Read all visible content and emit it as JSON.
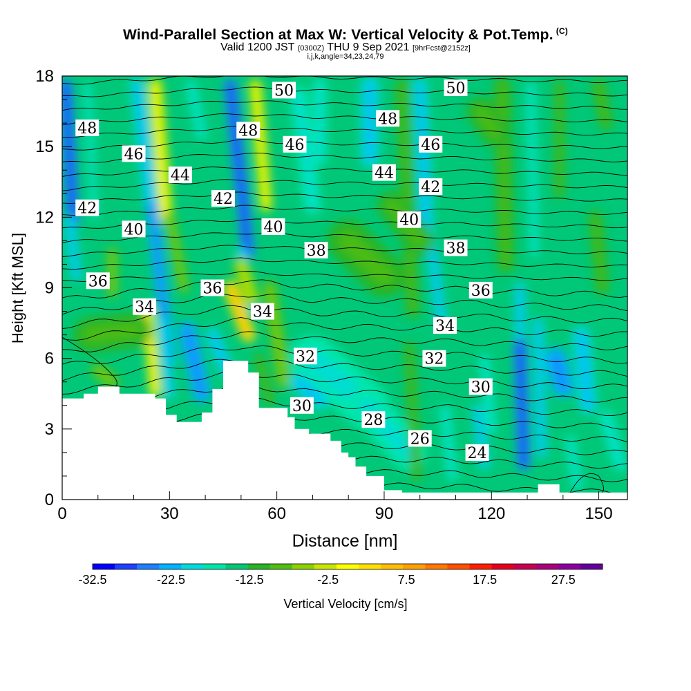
{
  "title": {
    "main": "Wind-Parallel Section at Max W: Vertical Velocity & Pot.Temp.",
    "copyright": "(C)",
    "valid_prefix": "Valid 1200 JST",
    "valid_utc": "(0300Z)",
    "valid_date": "THU 9 Sep 2021",
    "forecast": "[9hrFcst@2152z]",
    "indices": "i,j,k,angle=34,23,24,79"
  },
  "chart_data": {
    "type": "heatmap",
    "xlabel": "Distance [nm]",
    "ylabel": "Height [Kft MSL]",
    "xlim": [
      0,
      158
    ],
    "ylim": [
      0,
      18
    ],
    "xticks": [
      0,
      30,
      60,
      90,
      120,
      150
    ],
    "yticks": [
      0,
      3,
      6,
      9,
      12,
      15,
      18
    ],
    "colorbar": {
      "label": "Vertical Velocity [cm/s]",
      "min": -32.5,
      "max": 32.5,
      "step": 5,
      "tick_labels": [
        "-32.5",
        "-22.5",
        "-12.5",
        "-2.5",
        "7.5",
        "17.5",
        "27.5"
      ],
      "colors": [
        "#0000ff",
        "#1e40ff",
        "#1e80ff",
        "#00b4ff",
        "#00dcdc",
        "#00e6aa",
        "#00c878",
        "#28b428",
        "#50be14",
        "#8cd200",
        "#c8e600",
        "#ffff00",
        "#ffe100",
        "#ffbe00",
        "#ffa000",
        "#ff7800",
        "#ff5000",
        "#ff1e00",
        "#e6001e",
        "#c80050",
        "#aa0078",
        "#8c00a0",
        "#64009b"
      ]
    },
    "terrain": [
      [
        0,
        4.3
      ],
      [
        6,
        4.3
      ],
      [
        6,
        4.5
      ],
      [
        10,
        4.5
      ],
      [
        10,
        4.8
      ],
      [
        16,
        4.8
      ],
      [
        16,
        4.5
      ],
      [
        26,
        4.5
      ],
      [
        26,
        4.3
      ],
      [
        29,
        4.3
      ],
      [
        29,
        3.6
      ],
      [
        32,
        3.6
      ],
      [
        32,
        3.3
      ],
      [
        39,
        3.3
      ],
      [
        39,
        3.7
      ],
      [
        42,
        3.7
      ],
      [
        42,
        4.7
      ],
      [
        45,
        4.7
      ],
      [
        45,
        5.9
      ],
      [
        52,
        5.9
      ],
      [
        52,
        5.4
      ],
      [
        55,
        5.4
      ],
      [
        55,
        3.9
      ],
      [
        63,
        3.9
      ],
      [
        63,
        3.5
      ],
      [
        65,
        3.5
      ],
      [
        65,
        3.0
      ],
      [
        69,
        3.0
      ],
      [
        69,
        2.8
      ],
      [
        75,
        2.8
      ],
      [
        75,
        2.5
      ],
      [
        78,
        2.5
      ],
      [
        78,
        2.0
      ],
      [
        80,
        2.0
      ],
      [
        80,
        1.8
      ],
      [
        82,
        1.8
      ],
      [
        82,
        1.4
      ],
      [
        85,
        1.4
      ],
      [
        85,
        1.0
      ],
      [
        90,
        1.0
      ],
      [
        90,
        0.4
      ],
      [
        95,
        0.4
      ],
      [
        95,
        0.3
      ],
      [
        125,
        0.3
      ],
      [
        125,
        0.3
      ],
      [
        133,
        0.3
      ],
      [
        133,
        0.65
      ],
      [
        139,
        0.65
      ],
      [
        139,
        0.3
      ],
      [
        158,
        0.3
      ]
    ],
    "contours": [
      {
        "label": "24",
        "x": 116,
        "y": 2.0
      },
      {
        "label": "26",
        "x": 100,
        "y": 2.6
      },
      {
        "label": "28",
        "x": 87,
        "y": 3.4
      },
      {
        "label": "30",
        "x": 67,
        "y": 4.0
      },
      {
        "label": "30",
        "x": 117,
        "y": 4.8
      },
      {
        "label": "32",
        "x": 68,
        "y": 6.1
      },
      {
        "label": "32",
        "x": 104,
        "y": 6.0
      },
      {
        "label": "34",
        "x": 23,
        "y": 8.2
      },
      {
        "label": "34",
        "x": 56,
        "y": 8.0
      },
      {
        "label": "34",
        "x": 107,
        "y": 7.4
      },
      {
        "label": "36",
        "x": 10,
        "y": 9.3
      },
      {
        "label": "36",
        "x": 42,
        "y": 9.0
      },
      {
        "label": "36",
        "x": 117,
        "y": 8.9
      },
      {
        "label": "38",
        "x": 71,
        "y": 10.6
      },
      {
        "label": "38",
        "x": 110,
        "y": 10.7
      },
      {
        "label": "40",
        "x": 20,
        "y": 11.5
      },
      {
        "label": "40",
        "x": 59,
        "y": 11.6
      },
      {
        "label": "40",
        "x": 97,
        "y": 11.9
      },
      {
        "label": "42",
        "x": 7,
        "y": 12.4
      },
      {
        "label": "42",
        "x": 45,
        "y": 12.8
      },
      {
        "label": "42",
        "x": 103,
        "y": 13.3
      },
      {
        "label": "44",
        "x": 33,
        "y": 13.8
      },
      {
        "label": "44",
        "x": 90,
        "y": 13.9
      },
      {
        "label": "46",
        "x": 20,
        "y": 14.7
      },
      {
        "label": "46",
        "x": 65,
        "y": 15.1
      },
      {
        "label": "46",
        "x": 103,
        "y": 15.1
      },
      {
        "label": "48",
        "x": 7,
        "y": 15.8
      },
      {
        "label": "48",
        "x": 52,
        "y": 15.7
      },
      {
        "label": "48",
        "x": 91,
        "y": 16.2
      },
      {
        "label": "50",
        "x": 62,
        "y": 17.4
      },
      {
        "label": "50",
        "x": 110,
        "y": 17.5
      }
    ]
  }
}
